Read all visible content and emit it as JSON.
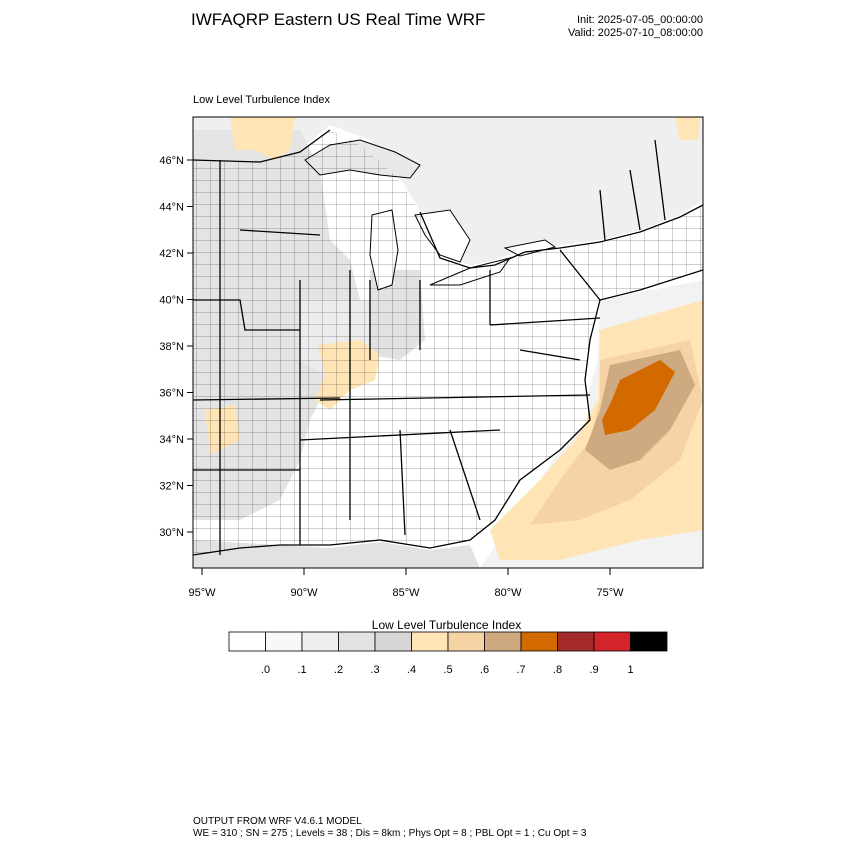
{
  "header": {
    "title": "IWFAQRP Eastern US Real Time WRF",
    "init": "Init: 2025-07-05_00:00:00",
    "valid": "Valid: 2025-07-10_08:00:00"
  },
  "panel": {
    "title": "Low Level Turbulence Index"
  },
  "axes": {
    "lat_labels": [
      "46°N",
      "44°N",
      "42°N",
      "40°N",
      "38°N",
      "36°N",
      "34°N",
      "32°N",
      "30°N"
    ],
    "lon_labels": [
      "95°W",
      "90°W",
      "85°W",
      "80°W",
      "75°W"
    ]
  },
  "colorbar": {
    "title": "Low Level Turbulence Index",
    "colors": [
      "#ffffff",
      "#f8f8f8",
      "#efefef",
      "#e2e2e2",
      "#d6d6d6",
      "#ffe4b5",
      "#f5d3a4",
      "#cfaa80",
      "#d26a00",
      "#a52a2a",
      "#d3242a",
      "#000000"
    ],
    "labels": [
      ".0",
      ".1",
      ".2",
      ".3",
      ".4",
      ".5",
      ".6",
      ".7",
      ".8",
      ".9",
      "1"
    ]
  },
  "footer": {
    "line1": "OUTPUT FROM WRF V4.6.1 MODEL",
    "line2": "WE = 310 ; SN = 275 ; Levels = 38 ; Dis = 8km ; Phys Opt = 8 ; PBL Opt = 1 ; Cu Opt = 3"
  }
}
